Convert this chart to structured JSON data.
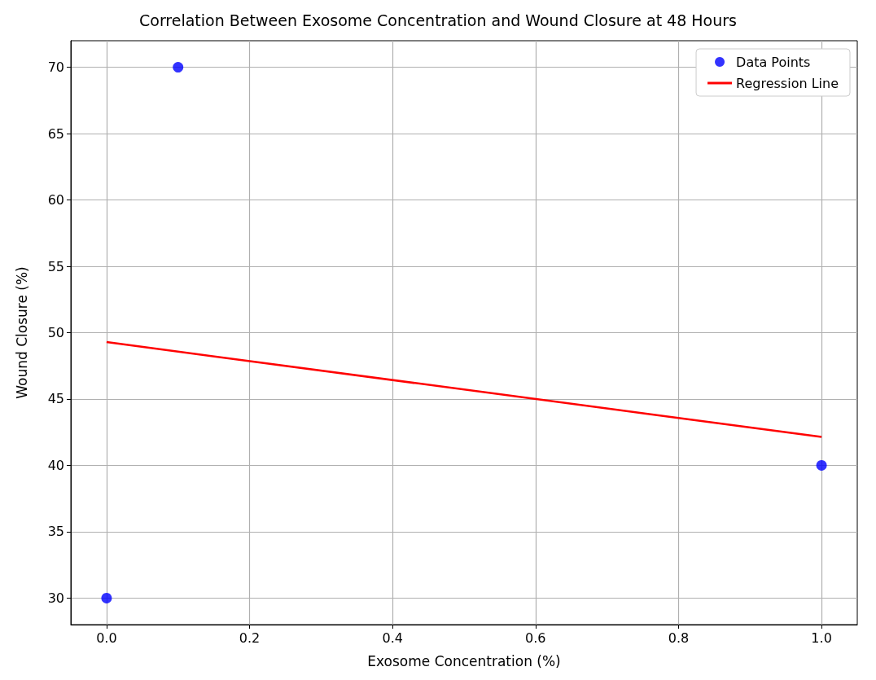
{
  "chart_data": {
    "type": "scatter",
    "title": "Correlation Between Exosome Concentration and Wound Closure at 48 Hours",
    "xlabel": "Exosome Concentration (%)",
    "ylabel": "Wound Closure (%)",
    "xlim": [
      -0.05,
      1.05
    ],
    "ylim": [
      28,
      72
    ],
    "xticks": [
      {
        "value": 0,
        "label": "0.0"
      },
      {
        "value": 0.2,
        "label": "0.2"
      },
      {
        "value": 0.4,
        "label": "0.4"
      },
      {
        "value": 0.6,
        "label": "0.6"
      },
      {
        "value": 0.8,
        "label": "0.8"
      },
      {
        "value": 1,
        "label": "1.0"
      }
    ],
    "yticks": [
      30,
      35,
      40,
      45,
      50,
      55,
      60,
      65,
      70
    ],
    "grid": true,
    "legend": "top right",
    "marker": "circle",
    "series": [
      {
        "name": "Data Points",
        "color": "#0000ff",
        "x": [
          0,
          0.1,
          1
        ],
        "values": [
          30,
          70,
          40
        ]
      },
      {
        "name": "Regression Line",
        "type": "line",
        "marker": "none",
        "color": "#ff0000",
        "x": [
          0,
          1
        ],
        "values": [
          49.29,
          42.14
        ]
      }
    ]
  }
}
